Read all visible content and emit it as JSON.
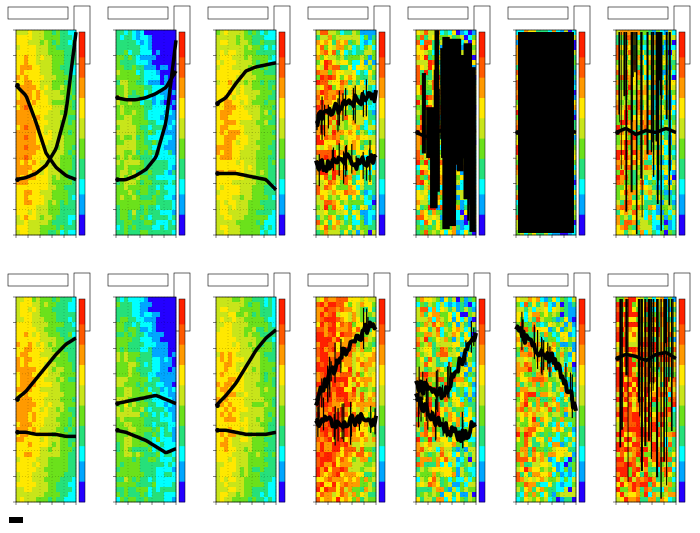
{
  "figure": {
    "rows": 2,
    "columns": 7,
    "colormap": [
      "#2400ff",
      "#00a6ff",
      "#00ffff",
      "#26e07a",
      "#6be11b",
      "#c8e51a",
      "#ffe800",
      "#ff9a00",
      "#ff5a00",
      "#ff2100"
    ],
    "overlay_color": "#000000",
    "frame_color": "#000000",
    "bottom_caption_present": true
  },
  "chart_data": [
    {
      "type": "heatmap",
      "row": 0,
      "col": 0,
      "noise": 0.05,
      "field_bias": 0.15,
      "overlay": "two-branch",
      "curves": [
        [
          0.73,
          0.68,
          0.55,
          0.4,
          0.33,
          0.29,
          0.27
        ],
        [
          0.27,
          0.28,
          0.3,
          0.34,
          0.42,
          0.6,
          0.99
        ]
      ]
    },
    {
      "type": "heatmap",
      "row": 0,
      "col": 1,
      "noise": 0.08,
      "field_bias": -0.25,
      "overlay": "two-branch",
      "curves": [
        [
          0.67,
          0.66,
          0.66,
          0.67,
          0.69,
          0.72,
          0.8
        ],
        [
          0.27,
          0.27,
          0.29,
          0.32,
          0.38,
          0.55,
          0.95
        ]
      ]
    },
    {
      "type": "heatmap",
      "row": 0,
      "col": 2,
      "noise": 0.06,
      "field_bias": 0.05,
      "overlay": "two-branch",
      "curves": [
        [
          0.64,
          0.67,
          0.74,
          0.8,
          0.82,
          0.83,
          0.84
        ],
        [
          0.3,
          0.3,
          0.3,
          0.29,
          0.28,
          0.27,
          0.22
        ]
      ]
    },
    {
      "type": "heatmap",
      "row": 0,
      "col": 3,
      "noise": 0.25,
      "field_bias": 0.15,
      "overlay": "dense-noisy",
      "curves": [
        [
          0.55,
          0.6,
          0.62,
          0.64,
          0.66,
          0.67,
          0.68
        ],
        [
          0.35,
          0.34,
          0.36,
          0.37,
          0.35,
          0.36,
          0.38
        ]
      ]
    },
    {
      "type": "heatmap",
      "row": 0,
      "col": 4,
      "noise": 0.35,
      "field_bias": 0.0,
      "overlay": "saturated",
      "curves": [
        [
          0.5,
          0.48,
          0.5,
          0.52,
          0.49,
          0.5,
          0.51
        ]
      ]
    },
    {
      "type": "heatmap",
      "row": 0,
      "col": 5,
      "noise": 0.35,
      "field_bias": 0.0,
      "overlay": "full-black",
      "curves": [
        [
          0.5,
          0.51,
          0.5,
          0.49,
          0.5,
          0.52,
          0.5
        ]
      ]
    },
    {
      "type": "heatmap",
      "row": 0,
      "col": 6,
      "noise": 0.3,
      "field_bias": 0.05,
      "overlay": "vertical-streaks",
      "curves": [
        [
          0.5,
          0.52,
          0.49,
          0.51,
          0.5,
          0.52,
          0.5
        ]
      ]
    },
    {
      "type": "heatmap",
      "row": 1,
      "col": 0,
      "noise": 0.05,
      "field_bias": 0.1,
      "overlay": "two-branch",
      "curves": [
        [
          0.5,
          0.54,
          0.6,
          0.66,
          0.72,
          0.77,
          0.8
        ],
        [
          0.34,
          0.34,
          0.33,
          0.33,
          0.33,
          0.32,
          0.32
        ]
      ]
    },
    {
      "type": "heatmap",
      "row": 1,
      "col": 1,
      "noise": 0.08,
      "field_bias": -0.25,
      "overlay": "two-branch",
      "curves": [
        [
          0.48,
          0.49,
          0.5,
          0.51,
          0.52,
          0.5,
          0.48
        ],
        [
          0.35,
          0.34,
          0.32,
          0.3,
          0.27,
          0.24,
          0.26
        ]
      ]
    },
    {
      "type": "heatmap",
      "row": 1,
      "col": 2,
      "noise": 0.06,
      "field_bias": 0.05,
      "overlay": "two-branch",
      "curves": [
        [
          0.47,
          0.52,
          0.58,
          0.66,
          0.74,
          0.8,
          0.84
        ],
        [
          0.35,
          0.35,
          0.34,
          0.33,
          0.33,
          0.33,
          0.34
        ]
      ]
    },
    {
      "type": "heatmap",
      "row": 1,
      "col": 3,
      "noise": 0.2,
      "field_bias": 0.45,
      "overlay": "dense-noisy",
      "curves": [
        [
          0.5,
          0.58,
          0.67,
          0.74,
          0.8,
          0.84,
          0.86
        ],
        [
          0.4,
          0.39,
          0.38,
          0.39,
          0.4,
          0.4,
          0.4
        ]
      ]
    },
    {
      "type": "heatmap",
      "row": 1,
      "col": 4,
      "noise": 0.3,
      "field_bias": 0.0,
      "overlay": "dense-noisy",
      "curves": [
        [
          0.58,
          0.55,
          0.52,
          0.55,
          0.64,
          0.73,
          0.8
        ],
        [
          0.5,
          0.45,
          0.4,
          0.36,
          0.33,
          0.32,
          0.4
        ]
      ]
    },
    {
      "type": "heatmap",
      "row": 1,
      "col": 5,
      "noise": 0.3,
      "field_bias": 0.0,
      "overlay": "dense-noisy",
      "curves": [
        [
          0.85,
          0.8,
          0.75,
          0.72,
          0.68,
          0.58,
          0.45
        ]
      ]
    },
    {
      "type": "heatmap",
      "row": 1,
      "col": 6,
      "noise": 0.35,
      "field_bias": 0.35,
      "overlay": "vertical-streaks",
      "curves": [
        [
          0.7,
          0.72,
          0.71,
          0.69,
          0.72,
          0.73,
          0.7
        ]
      ]
    }
  ]
}
